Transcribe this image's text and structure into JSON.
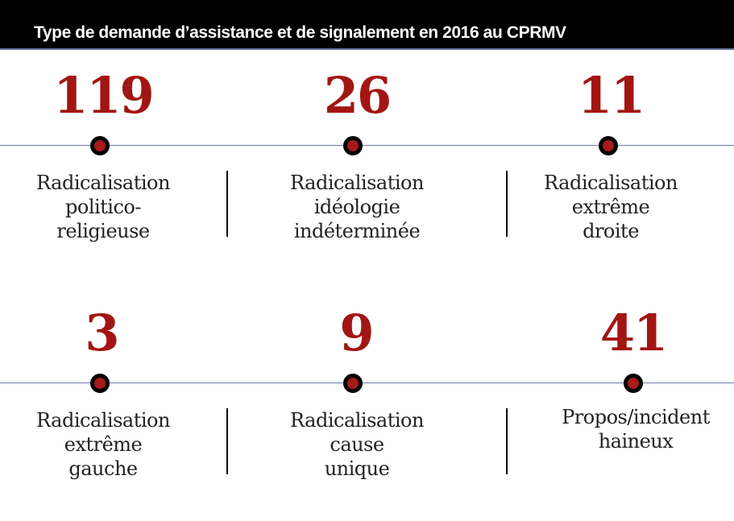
{
  "header": {
    "title": "Type de demande d’assistance et de signalement en 2016 au CPRMV"
  },
  "colors": {
    "number": "#a21512",
    "dot_fill": "#a61a18",
    "dot_ring": "#000000",
    "line": "#6b7bb0",
    "header_bg": "#000000"
  },
  "rows": [
    {
      "items": [
        {
          "value": "119",
          "label_lines": [
            "Radicalisation",
            "politico-",
            "religieuse"
          ]
        },
        {
          "value": "26",
          "label_lines": [
            "Radicalisation",
            "idéologie",
            "indéterminée"
          ]
        },
        {
          "value": "11",
          "label_lines": [
            "Radicalisation",
            "extrême",
            "droite"
          ]
        }
      ]
    },
    {
      "items": [
        {
          "value": "3",
          "label_lines": [
            "Radicalisation",
            "extrême",
            "gauche"
          ]
        },
        {
          "value": "9",
          "label_lines": [
            "Radicalisation",
            "cause",
            "unique"
          ]
        },
        {
          "value": "41",
          "label_lines": [
            "Propos/incident",
            "haineux"
          ]
        }
      ]
    }
  ]
}
